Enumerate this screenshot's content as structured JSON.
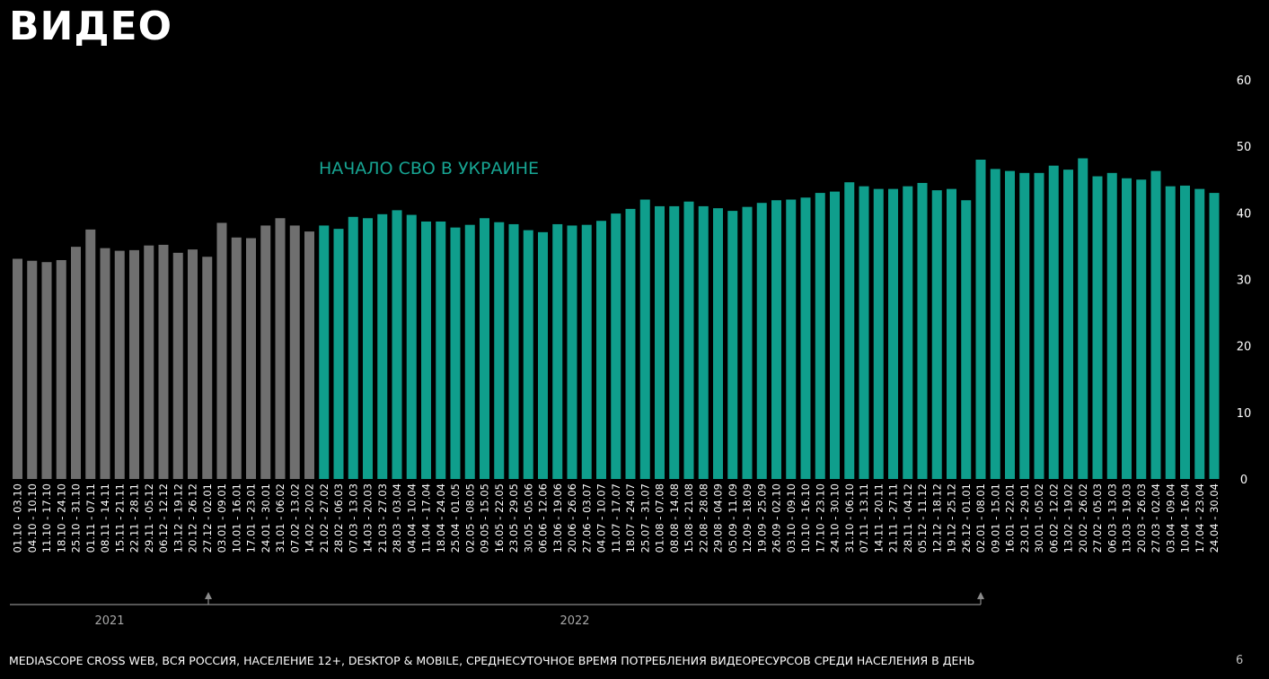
{
  "page": {
    "title": "ВИДЕО",
    "footnote": "MEDIASCOPE CROSS WEB, ВСЯ РОССИЯ, НАСЕЛЕНИЕ 12+, DESKTOP & MOBILE, СРЕДНЕСУТОЧНОЕ ВРЕМЯ ПОТРЕБЛЕНИЯ ВИДЕОРЕСУРСОВ СРЕДИ НАСЕЛЕНИЯ В ДЕНЬ",
    "page_number": "6"
  },
  "colors": {
    "before": "#6f6f6f",
    "after": "#0f9e8c",
    "annotation": "#17a593",
    "timeline": "#8a8a8a"
  },
  "chart_data": {
    "type": "bar",
    "title": "",
    "xlabel": "",
    "ylabel": "",
    "ylim": [
      0,
      60
    ],
    "yticks": [
      "0",
      "10",
      "20",
      "30",
      "40",
      "50",
      "60"
    ],
    "grid": false,
    "annotation": "НАЧАЛО СВО В УКРАИНЕ",
    "split_index": 20,
    "categories": [
      "01.10 - 03.10",
      "04.10 - 10.10",
      "11.10 - 17.10",
      "18.10 - 24.10",
      "25.10 - 31.10",
      "01.11 - 07.11",
      "08.11 - 14.11",
      "15.11 - 21.11",
      "22.11 - 28.11",
      "29.11 - 05.12",
      "06.12 - 12.12",
      "13.12 - 19.12",
      "20.12 - 26.12",
      "27.12 - 02.01",
      "03.01 - 09.01",
      "10.01 - 16.01",
      "17.01 - 23.01",
      "24.01 - 30.01",
      "31.01 - 06.02",
      "07.02 - 13.02",
      "14.02 - 20.02",
      "21.02 - 27.02",
      "28.02 - 06.03",
      "07.03 - 13.03",
      "14.03 - 20.03",
      "21.03 - 27.03",
      "28.03 - 03.04",
      "04.04 - 10.04",
      "11.04 - 17.04",
      "18.04 - 24.04",
      "25.04 - 01.05",
      "02.05 - 08.05",
      "09.05 - 15.05",
      "16.05 - 22.05",
      "23.05 - 29.05",
      "30.05 - 05.06",
      "06.06 - 12.06",
      "13.06 - 19.06",
      "20.06 - 26.06",
      "27.06 - 03.07",
      "04.07 - 10.07",
      "11.07 - 17.07",
      "18.07 - 24.07",
      "25.07 - 31.07",
      "01.08 - 07.08",
      "08.08 - 14.08",
      "15.08 - 21.08",
      "22.08 - 28.08",
      "29.08 - 04.09",
      "05.09 - 11.09",
      "12.09 - 18.09",
      "19.09 - 25.09",
      "26.09 - 02.10",
      "03.10 - 09.10",
      "10.10 - 16.10",
      "17.10 - 23.10",
      "24.10 - 30.10",
      "31.10 - 06.10",
      "07.11 - 13.11",
      "14.11 - 20.11",
      "21.11 - 27.11",
      "28.11 - 04.12",
      "05.12 - 11.12",
      "12.12 - 18.12",
      "19.12 - 25.12",
      "26.12 - 01.01",
      "02.01 - 08.01",
      "09.01 - 15.01",
      "16.01 - 22.01",
      "23.01 - 29.01",
      "30.01 - 05.02",
      "06.02 - 12.02",
      "13.02 - 19.02",
      "20.02 - 26.02",
      "27.02 - 05.03",
      "06.03 - 13.03",
      "13.03 - 19.03",
      "20.03 - 26.03",
      "27.03 - 02.04",
      "03.04 - 09.04",
      "10.04 - 16.04",
      "17.04 - 23.04",
      "24.04 - 30.04"
    ],
    "values": [
      33.1,
      32.8,
      32.6,
      32.9,
      34.9,
      37.5,
      34.7,
      34.3,
      34.4,
      35.1,
      35.2,
      34.0,
      34.5,
      33.4,
      38.5,
      36.3,
      36.2,
      38.1,
      39.2,
      38.1,
      37.2,
      38.1,
      37.6,
      39.4,
      39.2,
      39.8,
      40.4,
      39.7,
      38.7,
      38.7,
      37.8,
      38.2,
      39.2,
      38.6,
      38.3,
      37.4,
      37.1,
      38.3,
      38.1,
      38.2,
      38.8,
      39.9,
      40.6,
      42.0,
      41.0,
      41.0,
      41.7,
      41.0,
      40.7,
      40.3,
      40.9,
      41.5,
      41.9,
      42.0,
      42.3,
      43.0,
      43.2,
      44.6,
      44.0,
      43.6,
      43.6,
      44.0,
      44.5,
      43.4,
      43.6,
      41.9,
      48.0,
      46.6,
      46.3,
      46.0,
      46.0,
      47.1,
      46.5,
      48.2,
      45.5,
      46.0,
      45.2,
      45.0,
      46.3,
      44.0,
      44.1,
      43.6,
      43.0
    ],
    "year_labels": [
      {
        "text": "2021",
        "start": 0,
        "end": 13
      },
      {
        "text": "2022",
        "start": 14,
        "end": 65
      }
    ]
  }
}
